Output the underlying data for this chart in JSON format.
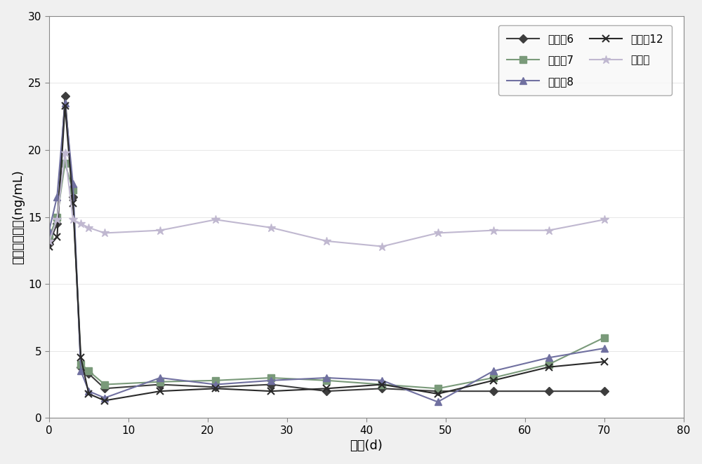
{
  "title": "",
  "xlabel": "时间(d)",
  "ylabel": "血清罎酮浓度(ng/mL)",
  "xlim": [
    0,
    80
  ],
  "ylim": [
    0,
    30
  ],
  "xticks": [
    0,
    10,
    20,
    30,
    40,
    50,
    60,
    70,
    80
  ],
  "yticks": [
    0,
    5,
    10,
    15,
    20,
    25,
    30
  ],
  "series": [
    {
      "label": "实施例6",
      "color": "#3d3d3d",
      "marker": "D",
      "markersize": 6,
      "linewidth": 1.5,
      "x": [
        0,
        1,
        2,
        3,
        4,
        5,
        7,
        14,
        21,
        28,
        35,
        42,
        49,
        56,
        63,
        70
      ],
      "y": [
        13.0,
        14.5,
        24.0,
        16.5,
        3.8,
        3.3,
        2.2,
        2.5,
        2.3,
        2.5,
        2.0,
        2.2,
        2.0,
        2.0,
        2.0,
        2.0
      ]
    },
    {
      "label": "实施例7",
      "color": "#7a9a7a",
      "marker": "s",
      "markersize": 7,
      "linewidth": 1.5,
      "x": [
        0,
        1,
        2,
        3,
        4,
        5,
        7,
        14,
        21,
        28,
        35,
        42,
        49,
        56,
        63,
        70
      ],
      "y": [
        13.5,
        15.0,
        19.0,
        17.0,
        4.0,
        3.5,
        2.5,
        2.7,
        2.8,
        3.0,
        2.8,
        2.5,
        2.2,
        3.0,
        4.0,
        6.0
      ]
    },
    {
      "label": "实施例8",
      "color": "#7070a0",
      "marker": "^",
      "markersize": 7,
      "linewidth": 1.5,
      "x": [
        0,
        1,
        2,
        3,
        4,
        5,
        7,
        14,
        21,
        28,
        35,
        42,
        49,
        56,
        63,
        70
      ],
      "y": [
        14.0,
        16.5,
        23.5,
        17.5,
        3.5,
        2.0,
        1.5,
        3.0,
        2.5,
        2.8,
        3.0,
        2.8,
        1.2,
        3.5,
        4.5,
        5.2
      ]
    },
    {
      "label": "实施例12",
      "color": "#2a2a2a",
      "marker": "x",
      "markersize": 7,
      "linewidth": 1.5,
      "markeredgewidth": 1.5,
      "x": [
        0,
        1,
        2,
        3,
        4,
        5,
        7,
        14,
        21,
        28,
        35,
        42,
        49,
        56,
        63,
        70
      ],
      "y": [
        12.8,
        13.5,
        23.3,
        16.0,
        4.5,
        1.8,
        1.3,
        2.0,
        2.2,
        2.0,
        2.2,
        2.5,
        1.8,
        2.8,
        3.8,
        4.2
      ]
    },
    {
      "label": "空白组",
      "color": "#c0b8d0",
      "marker": "*",
      "markersize": 9,
      "linewidth": 1.5,
      "x": [
        0,
        1,
        2,
        3,
        4,
        5,
        7,
        14,
        21,
        28,
        35,
        42,
        49,
        56,
        63,
        70
      ],
      "y": [
        13.2,
        14.8,
        19.8,
        14.8,
        14.5,
        14.2,
        13.8,
        14.0,
        14.8,
        14.2,
        13.2,
        12.8,
        13.8,
        14.0,
        14.0,
        14.8
      ]
    }
  ],
  "legend_fontsize": 11,
  "axis_fontsize": 13,
  "tick_fontsize": 11,
  "background_color": "#f0f0f0",
  "plot_bg_color": "#ffffff"
}
